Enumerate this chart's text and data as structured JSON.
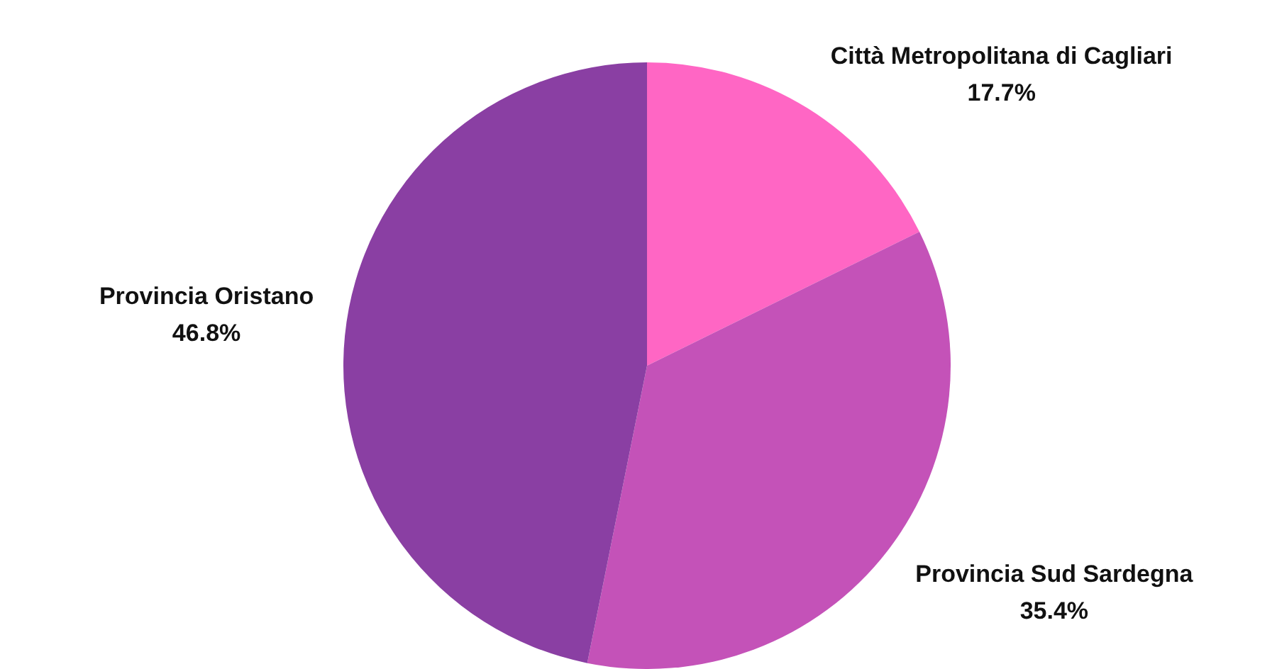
{
  "chart_data": {
    "type": "pie",
    "categories": [
      "Città Metropolitana di Cagliari",
      "Provincia Sud Sardegna",
      "Provincia Oristano"
    ],
    "values": [
      17.7,
      35.4,
      46.8
    ],
    "colors": [
      "#ff66c4",
      "#c452b8",
      "#8a3fa3"
    ],
    "value_labels": [
      "17.7%",
      "35.4%",
      "46.8%"
    ]
  }
}
